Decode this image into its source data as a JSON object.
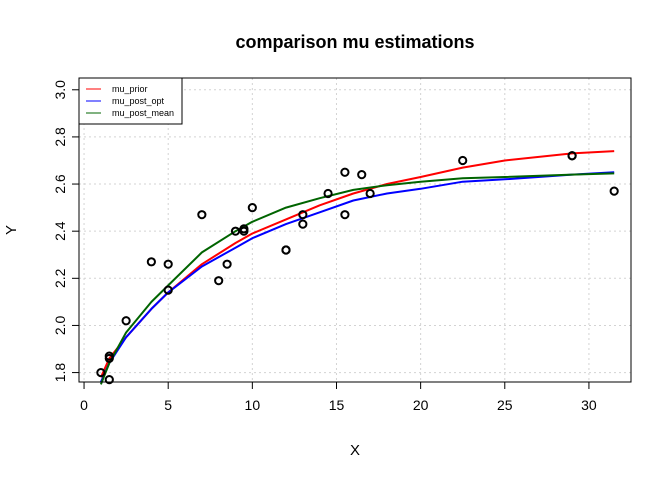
{
  "chart_data": {
    "type": "scatter",
    "title": "comparison mu estimations",
    "xlabel": "X",
    "ylabel": "Y",
    "xlim": [
      -0.3,
      32.5
    ],
    "ylim": [
      1.76,
      3.05
    ],
    "x_ticks": [
      0,
      5,
      10,
      15,
      20,
      25,
      30
    ],
    "y_ticks": [
      1.8,
      2.0,
      2.2,
      2.4,
      2.6,
      2.8,
      3.0
    ],
    "x_tick_labels": [
      "0",
      "5",
      "10",
      "15",
      "20",
      "25",
      "30"
    ],
    "y_tick_labels": [
      "1.8",
      "2.0",
      "2.2",
      "2.4",
      "2.6",
      "2.8",
      "3.0"
    ],
    "grid": true,
    "legend_position": "top-left",
    "points": {
      "x": [
        1.0,
        1.5,
        1.5,
        1.5,
        2.5,
        4.0,
        5.0,
        5.0,
        7.0,
        8.0,
        8.5,
        9.0,
        9.5,
        9.5,
        10.0,
        12.0,
        12.0,
        13.0,
        13.0,
        14.5,
        15.5,
        15.5,
        16.5,
        17.0,
        22.5,
        29.0,
        29.0,
        31.5
      ],
      "y": [
        1.8,
        1.77,
        1.86,
        1.87,
        2.02,
        2.27,
        2.15,
        2.26,
        2.47,
        2.19,
        2.26,
        2.4,
        2.4,
        2.41,
        2.5,
        2.32,
        2.32,
        2.43,
        2.47,
        2.56,
        2.47,
        2.65,
        2.64,
        2.56,
        2.7,
        2.72,
        2.72,
        2.57
      ]
    },
    "series": [
      {
        "name": "mu_prior",
        "color": "#ff0000",
        "x": [
          1,
          1.5,
          2.5,
          4,
          5,
          7,
          9,
          10,
          12,
          14,
          16,
          18,
          20,
          22.5,
          25,
          29,
          31.5
        ],
        "y": [
          1.78,
          1.86,
          1.95,
          2.07,
          2.14,
          2.26,
          2.35,
          2.39,
          2.45,
          2.51,
          2.56,
          2.6,
          2.63,
          2.67,
          2.7,
          2.73,
          2.74
        ]
      },
      {
        "name": "mu_post_opt",
        "color": "#0000ff",
        "x": [
          1,
          1.5,
          2.5,
          4,
          5,
          7,
          9,
          10,
          12,
          14,
          16,
          18,
          20,
          22.5,
          25,
          29,
          31.5
        ],
        "y": [
          1.76,
          1.84,
          1.95,
          2.07,
          2.14,
          2.25,
          2.33,
          2.37,
          2.43,
          2.48,
          2.53,
          2.56,
          2.58,
          2.61,
          2.62,
          2.64,
          2.65
        ]
      },
      {
        "name": "mu_post_mean",
        "color": "#006400",
        "x": [
          1,
          1.5,
          2.5,
          4,
          5,
          7,
          9,
          10,
          12,
          14,
          16,
          18,
          20,
          22.5,
          25,
          29,
          31.5
        ],
        "y": [
          1.75,
          1.84,
          1.97,
          2.1,
          2.17,
          2.31,
          2.4,
          2.44,
          2.5,
          2.54,
          2.575,
          2.595,
          2.61,
          2.625,
          2.63,
          2.64,
          2.645
        ]
      }
    ]
  }
}
